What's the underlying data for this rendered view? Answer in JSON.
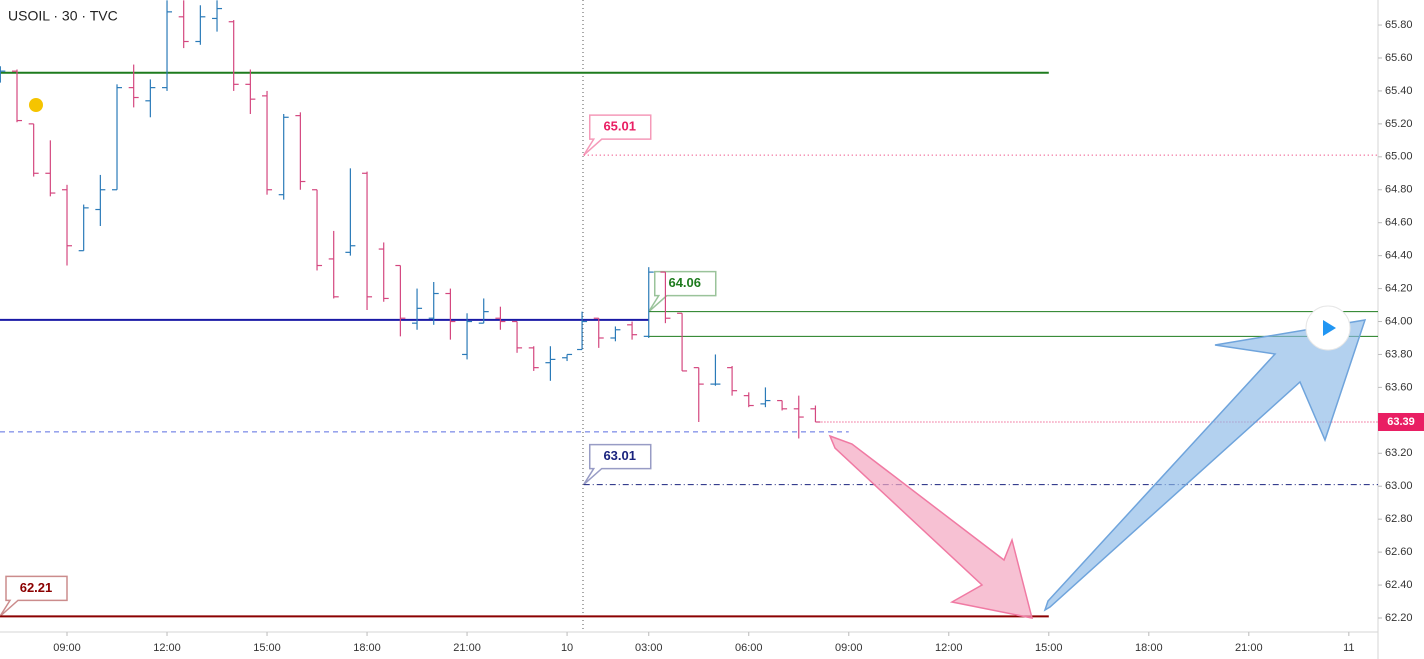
{
  "chart_data": {
    "type": "ohlc",
    "title": "USOIL · 30 · TVC",
    "up_color": "#2a7ab8",
    "down_color": "#d4477f",
    "x": [
      -4,
      -3,
      -2,
      -1,
      0,
      1,
      2,
      3,
      4,
      5,
      6,
      7,
      8,
      9,
      10,
      11,
      12,
      13,
      14,
      15,
      16,
      17,
      18,
      19,
      20,
      21,
      22,
      23,
      24,
      25,
      26,
      27,
      28,
      29,
      30,
      30.9,
      31.9,
      32.9,
      33.9,
      34.9,
      35.9,
      36.9,
      37.9,
      38.9,
      39.9,
      40.9,
      41.9,
      42.9,
      43.9,
      44.9
    ],
    "open": [
      65.5,
      65.52,
      65.2,
      64.9,
      64.8,
      64.43,
      64.68,
      64.8,
      65.42,
      65.34,
      65.42,
      65.85,
      65.7,
      65.84,
      65.82,
      65.44,
      65.37,
      64.77,
      65.25,
      64.8,
      64.38,
      64.42,
      64.9,
      64.44,
      64.34,
      63.99,
      64.02,
      64.17,
      63.8,
      63.99,
      64.02,
      64.0,
      63.84,
      63.75,
      63.78,
      63.83,
      64.02,
      63.9,
      63.98,
      63.91,
      64.3,
      64.05,
      63.72,
      63.62,
      63.72,
      63.55,
      63.5,
      63.52,
      63.47,
      63.47
    ],
    "high": [
      65.55,
      65.53,
      65.2,
      65.1,
      64.83,
      64.71,
      64.89,
      65.44,
      65.56,
      65.47,
      65.95,
      65.95,
      65.92,
      65.95,
      65.83,
      65.53,
      65.4,
      65.26,
      65.27,
      64.8,
      64.55,
      64.93,
      64.91,
      64.48,
      64.34,
      64.2,
      64.24,
      64.2,
      64.05,
      64.14,
      64.09,
      64.0,
      63.85,
      63.85,
      63.8,
      64.06,
      64.02,
      63.97,
      64.0,
      64.33,
      64.3,
      64.05,
      63.72,
      63.8,
      63.73,
      63.57,
      63.6,
      63.52,
      63.55,
      63.49
    ],
    "low": [
      65.45,
      65.21,
      64.88,
      64.76,
      64.34,
      64.43,
      64.58,
      64.8,
      65.3,
      65.24,
      65.4,
      65.66,
      65.68,
      65.76,
      65.4,
      65.26,
      64.77,
      64.74,
      64.8,
      64.31,
      64.14,
      64.4,
      64.07,
      64.12,
      63.91,
      63.95,
      63.98,
      63.89,
      63.77,
      63.99,
      63.95,
      63.81,
      63.7,
      63.64,
      63.76,
      63.83,
      63.84,
      63.88,
      63.89,
      63.9,
      63.99,
      63.7,
      63.39,
      63.61,
      63.55,
      63.48,
      63.48,
      63.46,
      63.29,
      63.39
    ],
    "close": [
      65.52,
      65.22,
      64.9,
      64.78,
      64.46,
      64.69,
      64.8,
      65.42,
      65.36,
      65.42,
      65.88,
      65.7,
      65.85,
      65.9,
      65.44,
      65.35,
      64.8,
      65.24,
      64.85,
      64.34,
      64.15,
      64.46,
      64.15,
      64.14,
      64.02,
      64.08,
      64.17,
      64.0,
      64.0,
      64.06,
      64.0,
      63.84,
      63.72,
      63.77,
      63.8,
      64.0,
      63.9,
      63.95,
      63.92,
      64.3,
      64.02,
      63.7,
      63.62,
      63.62,
      63.58,
      63.49,
      63.52,
      63.47,
      63.42,
      63.39
    ],
    "levels": [
      {
        "value": 65.51,
        "color": "#1e7b1e",
        "style": "solid",
        "width": 2,
        "x": [
          -4.02,
          58.9
        ],
        "callout": false
      },
      {
        "value": 65.01,
        "color": "#e91e63",
        "style": "dotted",
        "width": 1,
        "x": [
          31,
          78.65
        ],
        "callout": true
      },
      {
        "value": 64.06,
        "color": "#1e7b1e",
        "style": "solid",
        "width": 1,
        "x": [
          34.9,
          78.65
        ],
        "callout": true
      },
      {
        "value": 64.01,
        "color": "#1a1aa6",
        "style": "solid",
        "width": 2,
        "x": [
          -4.02,
          34.9
        ],
        "callout": false
      },
      {
        "value": 63.91,
        "color": "#1e7b1e",
        "style": "solid",
        "width": 1,
        "x": [
          34.9,
          78.65
        ],
        "callout": false
      },
      {
        "value": 63.33,
        "color": "#5b6ee1",
        "style": "dashed",
        "width": 1,
        "x": [
          -4.02,
          46.9
        ],
        "callout": false
      },
      {
        "value": 63.01,
        "color": "#1a237e",
        "style": "dashdot",
        "width": 1,
        "x": [
          31,
          78.65
        ],
        "callout": true
      },
      {
        "value": 62.21,
        "color": "#8b0000",
        "style": "solid",
        "width": 2,
        "x": [
          -4.02,
          58.9
        ],
        "callout": true
      }
    ],
    "last_price": 63.39,
    "last_price_color": "#e91e63",
    "xlim": [
      -4.02,
      78.65
    ],
    "xticks": [
      {
        "value": 0,
        "label": "09:00"
      },
      {
        "value": 6,
        "label": "12:00"
      },
      {
        "value": 12,
        "label": "15:00"
      },
      {
        "value": 18,
        "label": "18:00"
      },
      {
        "value": 24,
        "label": "21:00"
      },
      {
        "value": 30,
        "label": "10"
      },
      {
        "value": 34.9,
        "label": "03:00"
      },
      {
        "value": 40.9,
        "label": "06:00"
      },
      {
        "value": 46.9,
        "label": "09:00"
      },
      {
        "value": 52.9,
        "label": "12:00"
      },
      {
        "value": 58.9,
        "label": "15:00"
      },
      {
        "value": 64.9,
        "label": "18:00"
      },
      {
        "value": 70.9,
        "label": "21:00"
      },
      {
        "value": 76.9,
        "label": "11"
      }
    ],
    "ylim": [
      62.115,
      65.952
    ],
    "yticks": [
      {
        "value": 62.2,
        "label": "62.20"
      },
      {
        "value": 62.4,
        "label": "62.40"
      },
      {
        "value": 62.6,
        "label": "62.60"
      },
      {
        "value": 62.8,
        "label": "62.80"
      },
      {
        "value": 63,
        "label": "63.00"
      },
      {
        "value": 63.2,
        "label": "63.20"
      },
      {
        "value": 63.4,
        "label": "63.40"
      },
      {
        "value": 63.6,
        "label": "63.60"
      },
      {
        "value": 63.8,
        "label": "63.80"
      },
      {
        "value": 64,
        "label": "64.00"
      },
      {
        "value": 64.2,
        "label": "64.20"
      },
      {
        "value": 64.4,
        "label": "64.40"
      },
      {
        "value": 64.6,
        "label": "64.60"
      },
      {
        "value": 64.8,
        "label": "64.80"
      },
      {
        "value": 65,
        "label": "65.00"
      },
      {
        "value": 65.2,
        "label": "65.20"
      },
      {
        "value": 65.4,
        "label": "65.40"
      },
      {
        "value": 65.6,
        "label": "65.60"
      },
      {
        "value": 65.8,
        "label": "65.80"
      }
    ]
  }
}
